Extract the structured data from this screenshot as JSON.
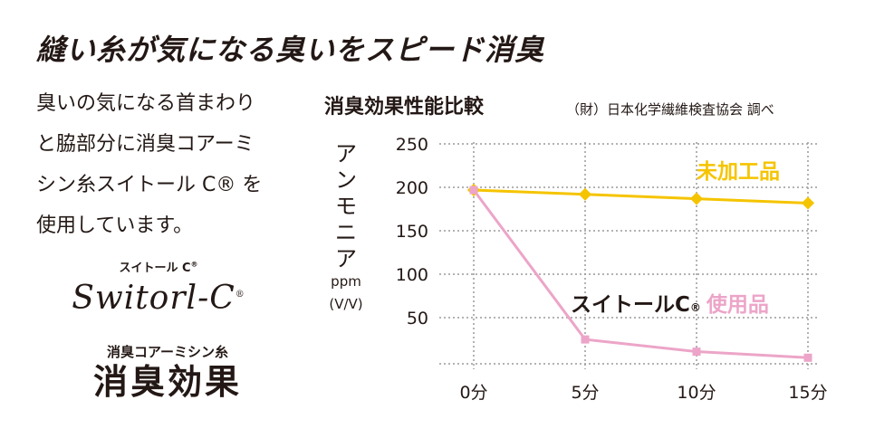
{
  "headline": "縫い糸が気になる臭いをスピード消臭",
  "description": [
    "臭いの気になる首まわり",
    "と脇部分に消臭コアーミ",
    "シン糸スイトール C® を",
    "使用しています。"
  ],
  "brand": {
    "small_label": "スイトール C",
    "reg_mark": "®",
    "logo_text": "Switorl-C"
  },
  "tagline": {
    "small": "消臭コアーミシン糸",
    "big": "消臭効果"
  },
  "chart_data": {
    "type": "line",
    "title": "消臭効果性能比較",
    "source": "（財）日本化学繊維検査協会 調べ",
    "ylabel": "アンモニア",
    "yunit": "ppm",
    "yunit2": "(V/V)",
    "categories": [
      "0分",
      "5分",
      "10分",
      "15分"
    ],
    "x": [
      0,
      5,
      10,
      15
    ],
    "xlim": [
      0,
      15
    ],
    "ylim": [
      0,
      250
    ],
    "yticks": [
      50,
      100,
      150,
      200,
      250
    ],
    "ytick_labels": [
      "50",
      "100",
      "150",
      "200",
      "250"
    ],
    "grid": true,
    "series": [
      {
        "name": "未加工品",
        "values": [
          200,
          195,
          190,
          185
        ],
        "color": "#f5c400"
      },
      {
        "name": "スイトールC® 使用品",
        "name_main": "スイトールC",
        "name_reg": "®",
        "name_suffix": "使用品",
        "values": [
          200,
          28,
          14,
          7
        ],
        "color": "#eca5c8"
      }
    ]
  }
}
